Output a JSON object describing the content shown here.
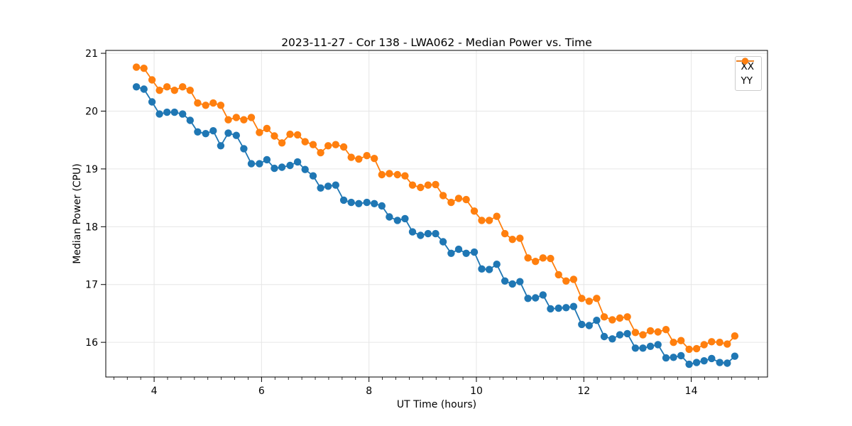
{
  "chart_data": {
    "type": "line",
    "title": "2023-11-27 - Cor 138 - LWA062 - Median Power vs. Time",
    "xlabel": "UT Time (hours)",
    "ylabel": "Median Power (CPU)",
    "xlim": [
      3.1,
      15.42
    ],
    "ylim": [
      15.4,
      21.05
    ],
    "xticks": [
      4,
      6,
      8,
      10,
      12,
      14
    ],
    "yticks": [
      16,
      17,
      18,
      19,
      20,
      21
    ],
    "x_minor_step": 0.25,
    "grid": true,
    "grid_color": "#e6e6e6",
    "legend_position": "upper right",
    "marker": "o",
    "x": [
      3.67,
      3.81,
      3.96,
      4.1,
      4.24,
      4.38,
      4.53,
      4.67,
      4.81,
      4.96,
      5.1,
      5.24,
      5.38,
      5.53,
      5.67,
      5.81,
      5.96,
      6.1,
      6.24,
      6.38,
      6.53,
      6.67,
      6.81,
      6.96,
      7.1,
      7.24,
      7.38,
      7.53,
      7.67,
      7.81,
      7.96,
      8.1,
      8.24,
      8.38,
      8.53,
      8.67,
      8.81,
      8.96,
      9.1,
      9.24,
      9.38,
      9.53,
      9.67,
      9.81,
      9.96,
      10.1,
      10.24,
      10.38,
      10.53,
      10.67,
      10.81,
      10.96,
      11.1,
      11.24,
      11.38,
      11.53,
      11.67,
      11.81,
      11.96,
      12.1,
      12.24,
      12.38,
      12.53,
      12.67,
      12.81,
      12.96,
      13.1,
      13.24,
      13.38,
      13.53,
      13.67,
      13.81,
      13.96,
      14.1,
      14.24,
      14.38,
      14.53,
      14.67,
      14.81
    ],
    "series": [
      {
        "name": "XX",
        "color": "#1f77b4",
        "values": [
          20.42,
          20.38,
          20.16,
          19.95,
          19.98,
          19.98,
          19.95,
          19.84,
          19.64,
          19.61,
          19.66,
          19.4,
          19.62,
          19.58,
          19.35,
          19.09,
          19.09,
          19.16,
          19.01,
          19.03,
          19.06,
          19.12,
          18.99,
          18.88,
          18.67,
          18.7,
          18.72,
          18.46,
          18.42,
          18.4,
          18.42,
          18.4,
          18.36,
          18.17,
          18.11,
          18.14,
          17.91,
          17.85,
          17.88,
          17.88,
          17.74,
          17.54,
          17.61,
          17.54,
          17.56,
          17.27,
          17.26,
          17.35,
          17.06,
          17.01,
          17.05,
          16.76,
          16.77,
          16.82,
          16.58,
          16.59,
          16.6,
          16.62,
          16.31,
          16.29,
          16.38,
          16.1,
          16.06,
          16.13,
          16.15,
          15.9,
          15.9,
          15.93,
          15.96,
          15.73,
          15.74,
          15.77,
          15.62,
          15.65,
          15.68,
          15.72,
          15.65,
          15.64,
          15.76
        ]
      },
      {
        "name": "YY",
        "color": "#ff7f0e",
        "values": [
          20.76,
          20.74,
          20.54,
          20.36,
          20.42,
          20.36,
          20.42,
          20.36,
          20.14,
          20.1,
          20.14,
          20.1,
          19.85,
          19.89,
          19.85,
          19.89,
          19.63,
          19.7,
          19.57,
          19.45,
          19.6,
          19.59,
          19.47,
          19.42,
          19.28,
          19.4,
          19.42,
          19.38,
          19.2,
          19.17,
          19.23,
          19.18,
          18.9,
          18.92,
          18.9,
          18.88,
          18.72,
          18.68,
          18.72,
          18.73,
          18.54,
          18.42,
          18.49,
          18.47,
          18.27,
          18.11,
          18.11,
          18.18,
          17.88,
          17.78,
          17.8,
          17.46,
          17.4,
          17.46,
          17.45,
          17.17,
          17.06,
          17.09,
          16.76,
          16.71,
          16.76,
          16.44,
          16.39,
          16.42,
          16.44,
          16.17,
          16.13,
          16.2,
          16.18,
          16.22,
          16.0,
          16.03,
          15.88,
          15.89,
          15.96,
          16.01,
          16.0,
          15.97,
          16.11
        ]
      }
    ]
  }
}
